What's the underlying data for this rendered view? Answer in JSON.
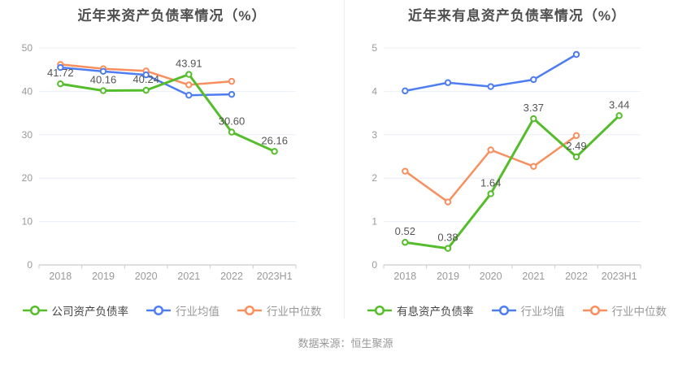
{
  "page": {
    "source_note": "数据来源：恒生聚源"
  },
  "palette": {
    "green": "#55bd2b",
    "blue": "#4e7df2",
    "orange": "#f98e5e",
    "grid": "#e9eef6",
    "axis": "#cccccc",
    "tick_label": "#999999",
    "value_label": "#555555",
    "title": "#4f4f4f",
    "legend_active": "#454545",
    "legend_muted": "#999999",
    "divider": "#ececec",
    "marker_fill": "#ffffff"
  },
  "chart_data": [
    {
      "type": "line",
      "title": "近年来资产负债率情况（%）",
      "categories": [
        "2018",
        "2019",
        "2020",
        "2021",
        "2022",
        "2023H1"
      ],
      "ylim": [
        0,
        50
      ],
      "y_ticks": [
        0,
        10,
        20,
        30,
        40,
        50
      ],
      "grid": true,
      "legend_position": "bottom",
      "series": [
        {
          "name": "公司资产负债率",
          "color_key": "green",
          "values": [
            41.72,
            40.16,
            40.24,
            43.91,
            30.6,
            26.16
          ],
          "value_labels": [
            "41.72",
            "40.16",
            "40.24",
            "43.91",
            "30.60",
            "26.16"
          ],
          "show_labels": true
        },
        {
          "name": "行业均值",
          "color_key": "blue",
          "values": [
            45.5,
            44.6,
            43.8,
            39.1,
            39.3,
            null
          ],
          "show_labels": false
        },
        {
          "name": "行业中位数",
          "color_key": "orange",
          "values": [
            46.2,
            45.2,
            44.7,
            41.5,
            42.3,
            null
          ],
          "show_labels": false
        }
      ]
    },
    {
      "type": "line",
      "title": "近年来有息资产负债率情况（%）",
      "categories": [
        "2018",
        "2019",
        "2020",
        "2021",
        "2022",
        "2023H1"
      ],
      "ylim": [
        0,
        5
      ],
      "y_ticks": [
        0,
        1,
        2,
        3,
        4,
        5
      ],
      "grid": true,
      "legend_position": "bottom",
      "series": [
        {
          "name": "有息资产负债率",
          "color_key": "green",
          "values": [
            0.52,
            0.38,
            1.64,
            3.37,
            2.49,
            3.44
          ],
          "value_labels": [
            "0.52",
            "0.38",
            "1.64",
            "3.37",
            "2.49",
            "3.44"
          ],
          "show_labels": true
        },
        {
          "name": "行业均值",
          "color_key": "blue",
          "values": [
            4.01,
            4.2,
            4.11,
            4.27,
            4.85,
            null
          ],
          "show_labels": false
        },
        {
          "name": "行业中位数",
          "color_key": "orange",
          "values": [
            2.16,
            1.45,
            2.65,
            2.27,
            2.98,
            null
          ],
          "show_labels": false
        }
      ]
    }
  ]
}
